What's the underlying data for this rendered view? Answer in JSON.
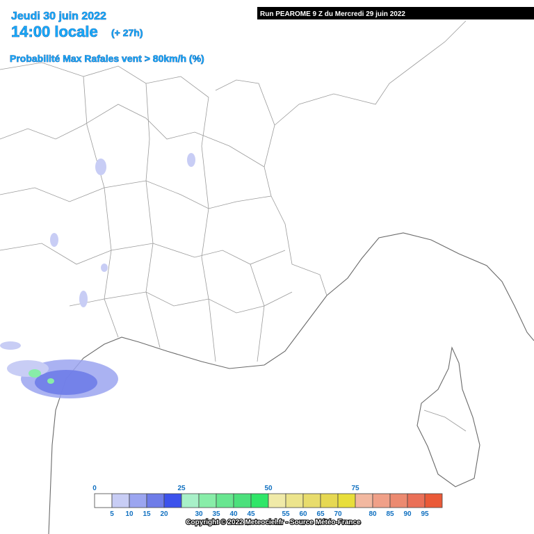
{
  "header": {
    "date": "Jeudi 30 juin 2022",
    "time": "14:00 locale",
    "lead": "(+ 27h)",
    "parameter": "Probabilité Max Rafales vent > 80km/h (%)",
    "run": "Run PEAROME 9 Z du Mercredi 29 juin 2022"
  },
  "legend": {
    "top_labels": [
      0,
      25,
      50,
      75
    ],
    "bottom_labels": [
      5,
      10,
      15,
      20,
      30,
      35,
      40,
      45,
      55,
      60,
      65,
      70,
      80,
      85,
      90,
      95
    ],
    "colors": [
      "#ffffff",
      "#c8cdf5",
      "#9ba5f0",
      "#6e7ce8",
      "#3c52ec",
      "#a8f0c8",
      "#88eda8",
      "#68e690",
      "#4ce07c",
      "#30e668",
      "#f0eaa8",
      "#ece48c",
      "#e8dc6c",
      "#e6d852",
      "#e8de3a",
      "#f2b8a0",
      "#f0a088",
      "#ec8a70",
      "#ea7058",
      "#ea5a38"
    ]
  },
  "footer": {
    "copyright": "Copyright © 2022 Meteociel.fr - Source Météo-France"
  }
}
